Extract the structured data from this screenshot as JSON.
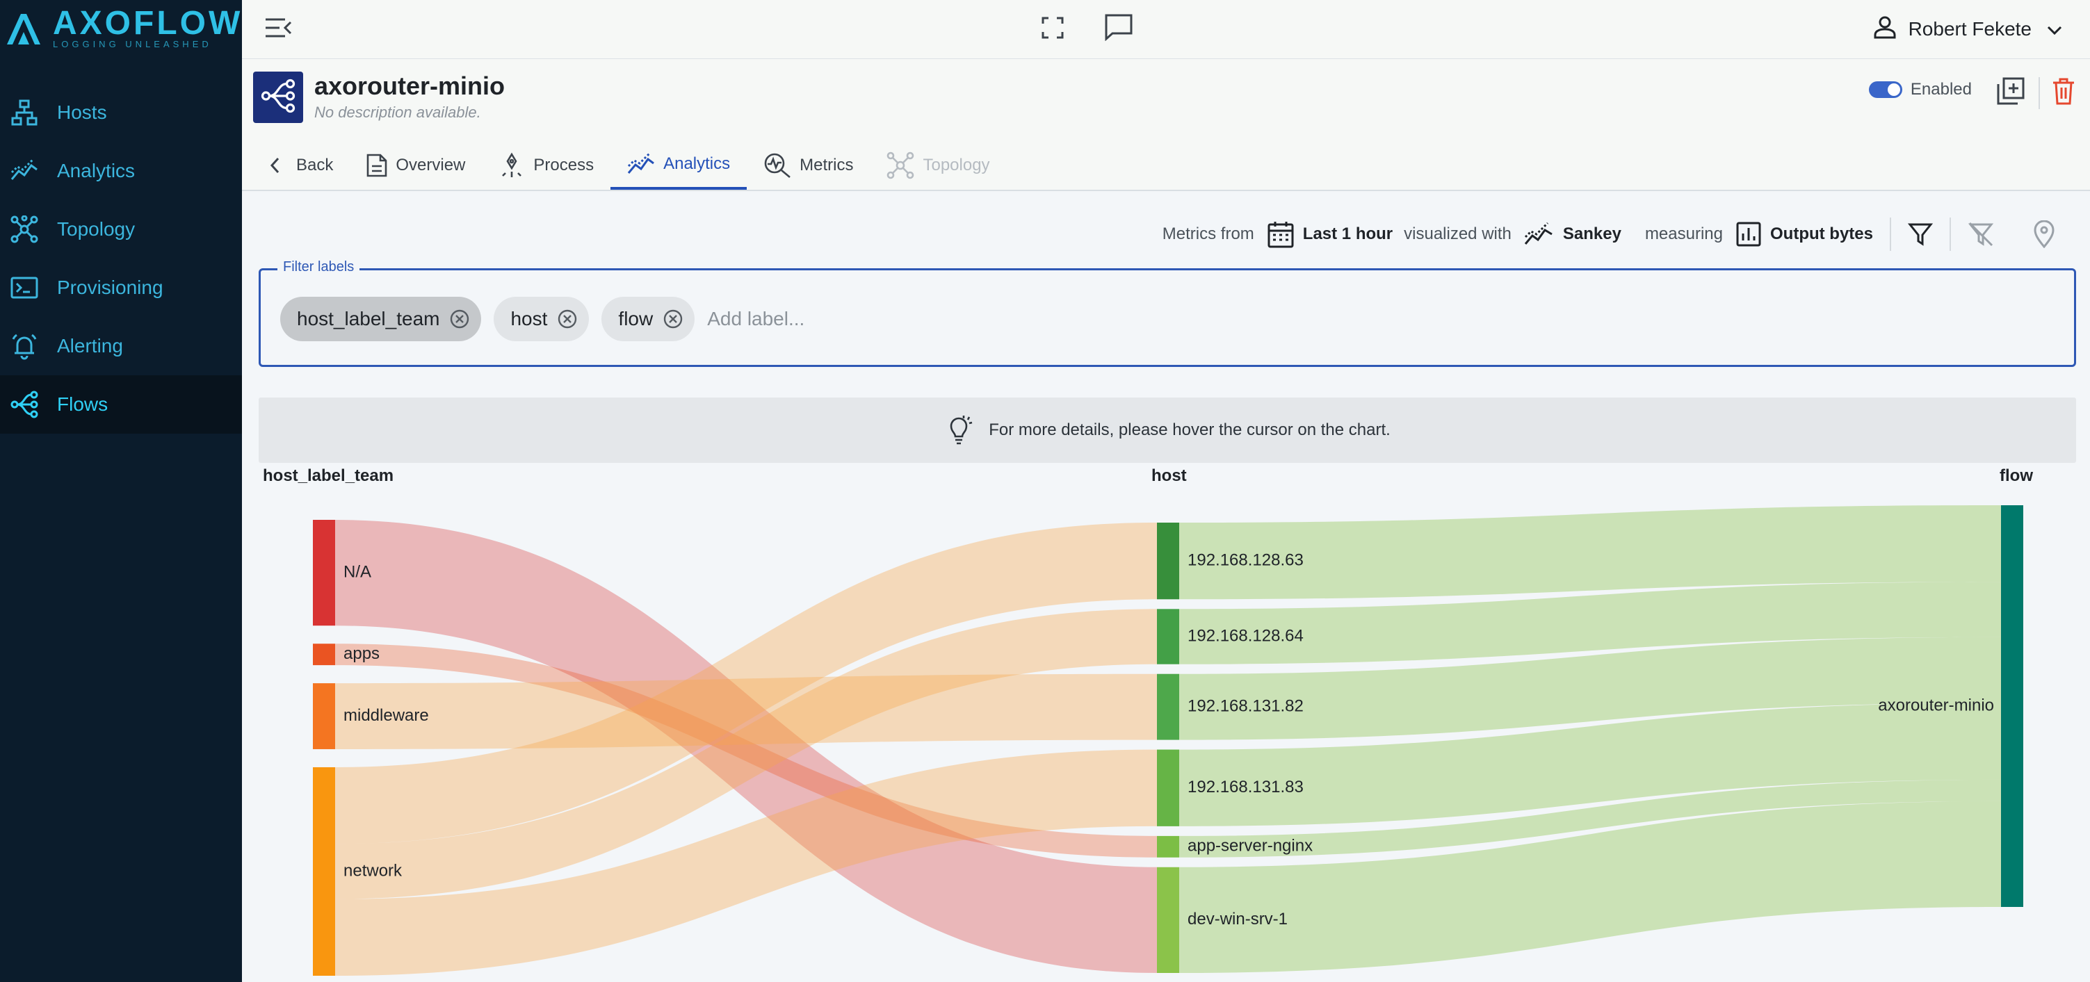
{
  "brand": {
    "name": "AXOFLOW",
    "tagline": "LOGGING UNLEASHED"
  },
  "sidebar": {
    "items": [
      {
        "label": "Hosts",
        "icon": "hosts-icon"
      },
      {
        "label": "Analytics",
        "icon": "analytics-icon"
      },
      {
        "label": "Topology",
        "icon": "topology-icon"
      },
      {
        "label": "Provisioning",
        "icon": "terminal-icon"
      },
      {
        "label": "Alerting",
        "icon": "bell-icon"
      },
      {
        "label": "Flows",
        "icon": "flows-icon"
      }
    ],
    "active": "Flows"
  },
  "topbar": {
    "user_name": "Robert Fekete"
  },
  "header": {
    "title": "axorouter-minio",
    "subtitle": "No description available.",
    "enabled_label": "Enabled",
    "tabs": [
      {
        "label": "Back"
      },
      {
        "label": "Overview"
      },
      {
        "label": "Process"
      },
      {
        "label": "Analytics"
      },
      {
        "label": "Metrics"
      },
      {
        "label": "Topology"
      }
    ],
    "active_tab": "Analytics"
  },
  "metrics": {
    "from_label": "Metrics from",
    "range": "Last 1 hour",
    "visualized_label": "visualized with",
    "chart_type": "Sankey",
    "measuring_label": "measuring",
    "measure": "Output bytes"
  },
  "filter": {
    "legend": "Filter labels",
    "chips": [
      "host_label_team",
      "host",
      "flow"
    ],
    "placeholder": "Add label..."
  },
  "hint": "For more details, please hover the cursor on the chart.",
  "chart_data": {
    "type": "sankey",
    "measure": "Output bytes",
    "columns": [
      "host_label_team",
      "host",
      "flow"
    ],
    "nodes": [
      {
        "name": "N/A",
        "column": 0,
        "color": "#d83333"
      },
      {
        "name": "apps",
        "column": 0,
        "color": "#ea5422"
      },
      {
        "name": "middleware",
        "column": 0,
        "color": "#f47521"
      },
      {
        "name": "network",
        "column": 0,
        "color": "#f9960f"
      },
      {
        "name": "192.168.128.63",
        "column": 1,
        "color": "#378f3b"
      },
      {
        "name": "192.168.128.64",
        "column": 1,
        "color": "#43a047"
      },
      {
        "name": "192.168.131.82",
        "column": 1,
        "color": "#4ea84b"
      },
      {
        "name": "192.168.131.83",
        "column": 1,
        "color": "#66b446"
      },
      {
        "name": "app-server-nginx",
        "column": 1,
        "color": "#7cbe45"
      },
      {
        "name": "dev-win-srv-1",
        "column": 1,
        "color": "#8bc34a"
      },
      {
        "name": "axorouter-minio",
        "column": 2,
        "color": "#00796b"
      }
    ],
    "links": [
      {
        "source": "N/A",
        "target": "dev-win-srv-1",
        "value": 138
      },
      {
        "source": "apps",
        "target": "app-server-nginx",
        "value": 28
      },
      {
        "source": "middleware",
        "target": "192.168.131.82",
        "value": 86
      },
      {
        "source": "network",
        "target": "192.168.128.63",
        "value": 100
      },
      {
        "source": "network",
        "target": "192.168.128.64",
        "value": 72
      },
      {
        "source": "network",
        "target": "192.168.131.83",
        "value": 100
      },
      {
        "source": "192.168.128.63",
        "target": "axorouter-minio",
        "value": 100
      },
      {
        "source": "192.168.128.64",
        "target": "axorouter-minio",
        "value": 72
      },
      {
        "source": "192.168.131.82",
        "target": "axorouter-minio",
        "value": 86
      },
      {
        "source": "192.168.131.83",
        "target": "axorouter-minio",
        "value": 100
      },
      {
        "source": "app-server-nginx",
        "target": "axorouter-minio",
        "value": 28
      },
      {
        "source": "dev-win-srv-1",
        "target": "axorouter-minio",
        "value": 138
      }
    ]
  }
}
